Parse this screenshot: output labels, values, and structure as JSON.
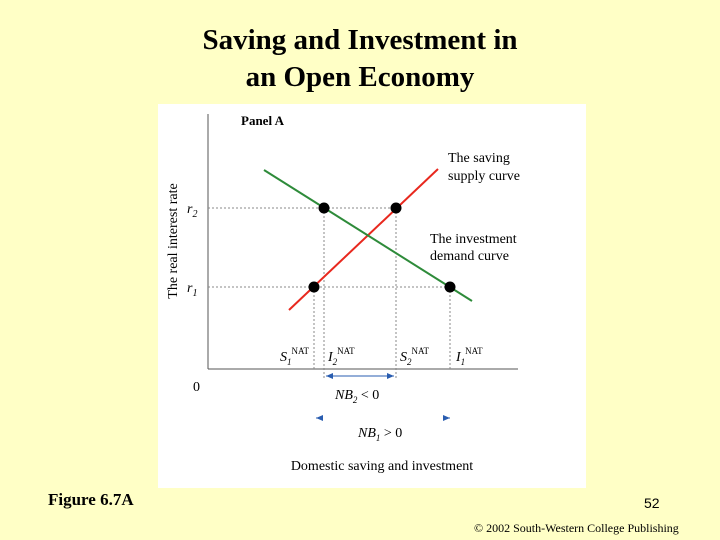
{
  "title_line1": "Saving and Investment in",
  "title_line2": "an Open Economy",
  "figure_label": "Figure 6.7A",
  "page_number": "52",
  "copyright": "© 2002 South-Western College Publishing",
  "chart_data": {
    "type": "line",
    "panel_label": "Panel A",
    "xlabel": "Domestic saving and investment",
    "ylabel": "The real interest rate",
    "origin_label": "0",
    "y_ticks": [
      {
        "label": "r",
        "sub": "1"
      },
      {
        "label": "r",
        "sub": "2"
      }
    ],
    "x_ticks": [
      {
        "label": "S",
        "sub": "1",
        "sup": "NAT"
      },
      {
        "label": "I",
        "sub": "2",
        "sup": "NAT"
      },
      {
        "label": "S",
        "sub": "2",
        "sup": "NAT"
      },
      {
        "label": "I",
        "sub": "1",
        "sup": "NAT"
      }
    ],
    "series": [
      {
        "name": "The saving supply curve",
        "label_line1": "The saving",
        "label_line2": "supply curve",
        "color": "#e8281e"
      },
      {
        "name": "The investment demand curve",
        "label_line1": "The investment",
        "label_line2": "demand curve",
        "color": "#2e8b3a"
      }
    ],
    "annotations": [
      {
        "label": "NB",
        "sub": "2",
        "rest": " < 0"
      },
      {
        "label": "NB",
        "sub": "1",
        "rest": " > 0"
      }
    ]
  }
}
